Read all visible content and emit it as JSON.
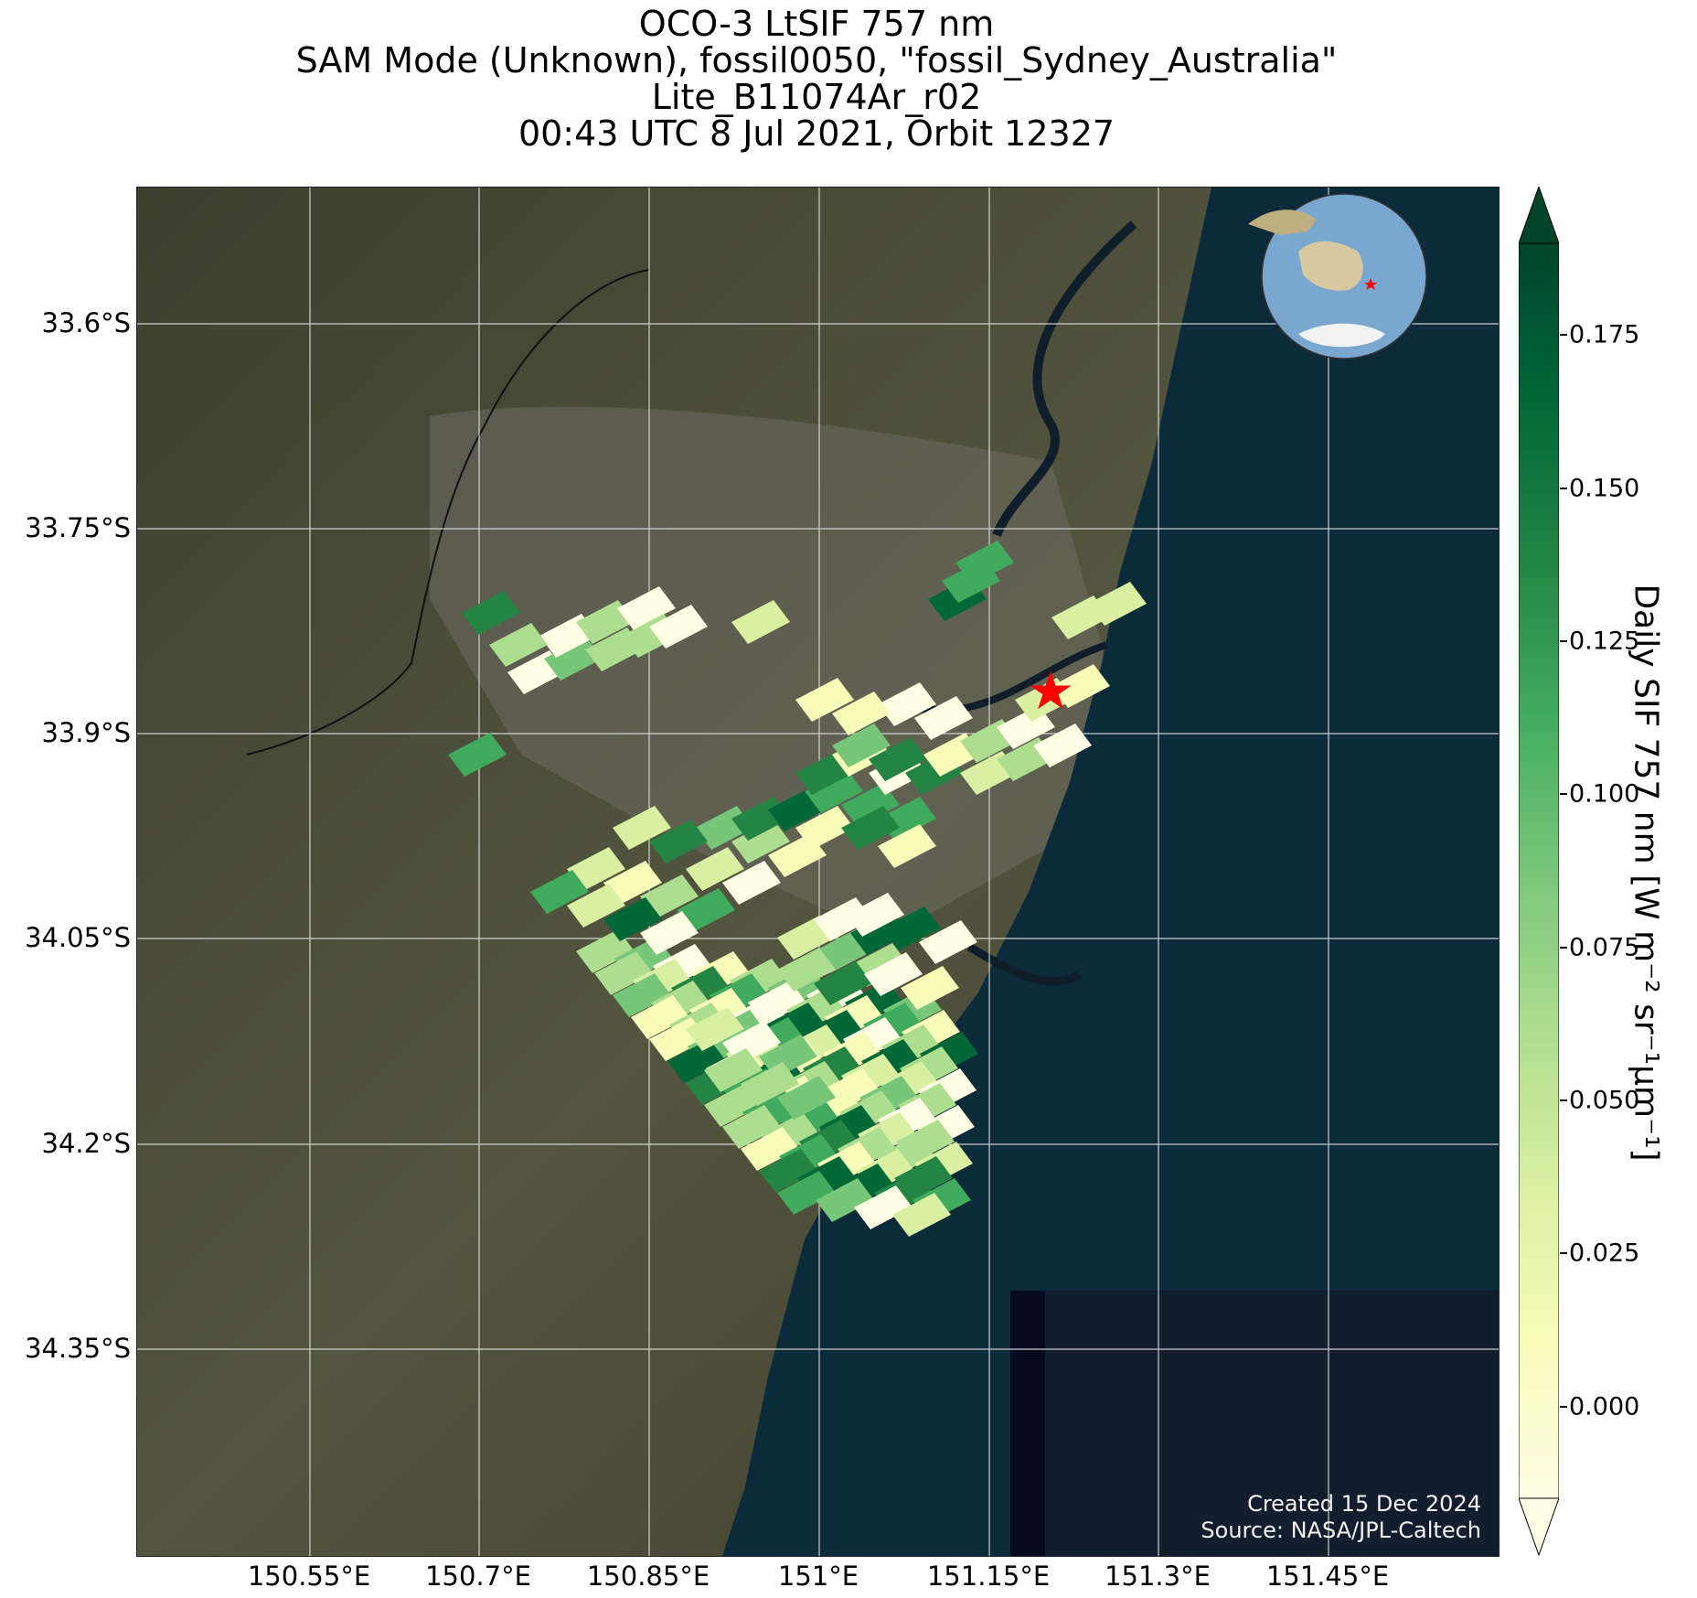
{
  "title": {
    "line1": "OCO-3 LtSIF 757 nm",
    "line2": "SAM Mode (Unknown), fossil0050, \"fossil_Sydney_Australia\"",
    "line3": "Lite_B11074Ar_r02",
    "line4": "00:43 UTC 8 Jul 2021, Orbit 12327"
  },
  "map": {
    "lat_ticks": [
      "33.6°S",
      "33.75°S",
      "33.9°S",
      "34.05°S",
      "34.2°S",
      "34.35°S"
    ],
    "lon_ticks": [
      "150.55°E",
      "150.7°E",
      "150.85°E",
      "151°E",
      "151.15°E",
      "151.3°E",
      "151.45°E"
    ],
    "target_marker": "red-star",
    "inset": "globe-locator-icon"
  },
  "colorbar": {
    "label": "Daily SIF 757 nm [W m⁻² sr⁻¹μm⁻¹]",
    "ticks": [
      "0.000",
      "0.025",
      "0.050",
      "0.075",
      "0.100",
      "0.125",
      "0.150",
      "0.175"
    ],
    "range": [
      -0.015,
      0.19
    ],
    "colormap": "YlGn",
    "extend": "both"
  },
  "credit": {
    "line1": "Created 15 Dec 2024",
    "line2": "Source: NASA/JPL-Caltech"
  },
  "colors": {
    "ocean": "#0b2a3a",
    "land": "#4a4c38",
    "grid": "#e8e8e8",
    "star": "#ff0000"
  }
}
